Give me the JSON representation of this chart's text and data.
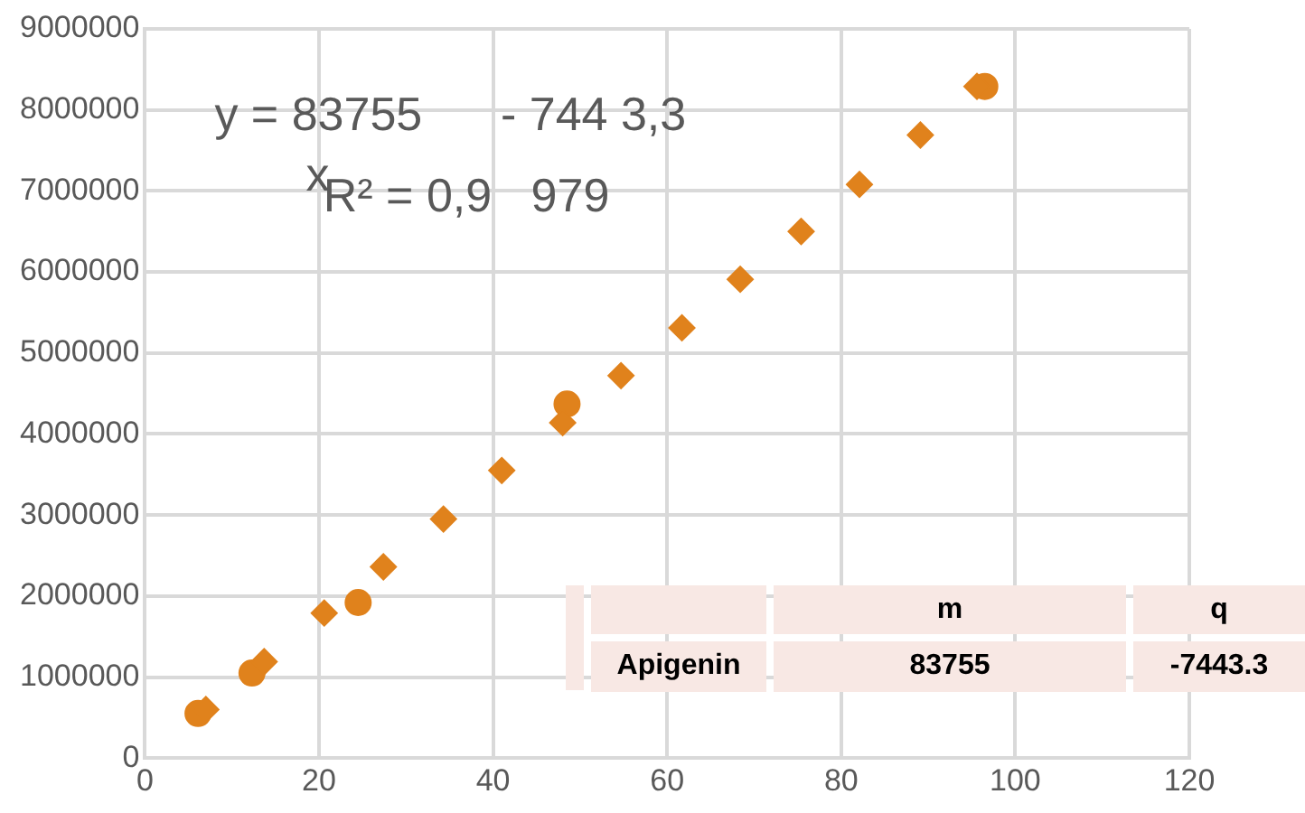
{
  "chart_data": {
    "type": "scatter",
    "xlim": [
      0,
      120
    ],
    "xticks": [
      0,
      20,
      40,
      60,
      80,
      100,
      120
    ],
    "ylim": [
      0,
      9000000
    ],
    "yticks": [
      0,
      1000000,
      2000000,
      3000000,
      4000000,
      5000000,
      6000000,
      7000000,
      8000000,
      9000000
    ],
    "grid": true,
    "legend": false,
    "series": [
      {
        "color": "#e0821c",
        "marker": "diamond",
        "x": [
          7,
          13.7,
          20.6,
          27.4,
          34.3,
          41,
          48,
          54.7,
          61.7,
          68.4,
          75.4,
          82.1,
          89.1,
          95.6
        ],
        "values": [
          600000,
          1190000,
          1790000,
          2360000,
          2950000,
          3550000,
          4140000,
          4720000,
          5310000,
          5910000,
          6500000,
          7080000,
          7690000,
          8290000
        ]
      },
      {
        "color": "#e0821c",
        "marker": "circle",
        "x": [
          6.1,
          12.3,
          24.5,
          48.5,
          96.5
        ],
        "values": [
          550000,
          1050000,
          1920000,
          4370000,
          8290000
        ]
      }
    ],
    "annotations": [
      "y = 83755      - 744 3,3",
      "x",
      "R² = 0,9   979",
      "m",
      "q",
      "Apigenin",
      "83755",
      "-7443.3"
    ]
  }
}
